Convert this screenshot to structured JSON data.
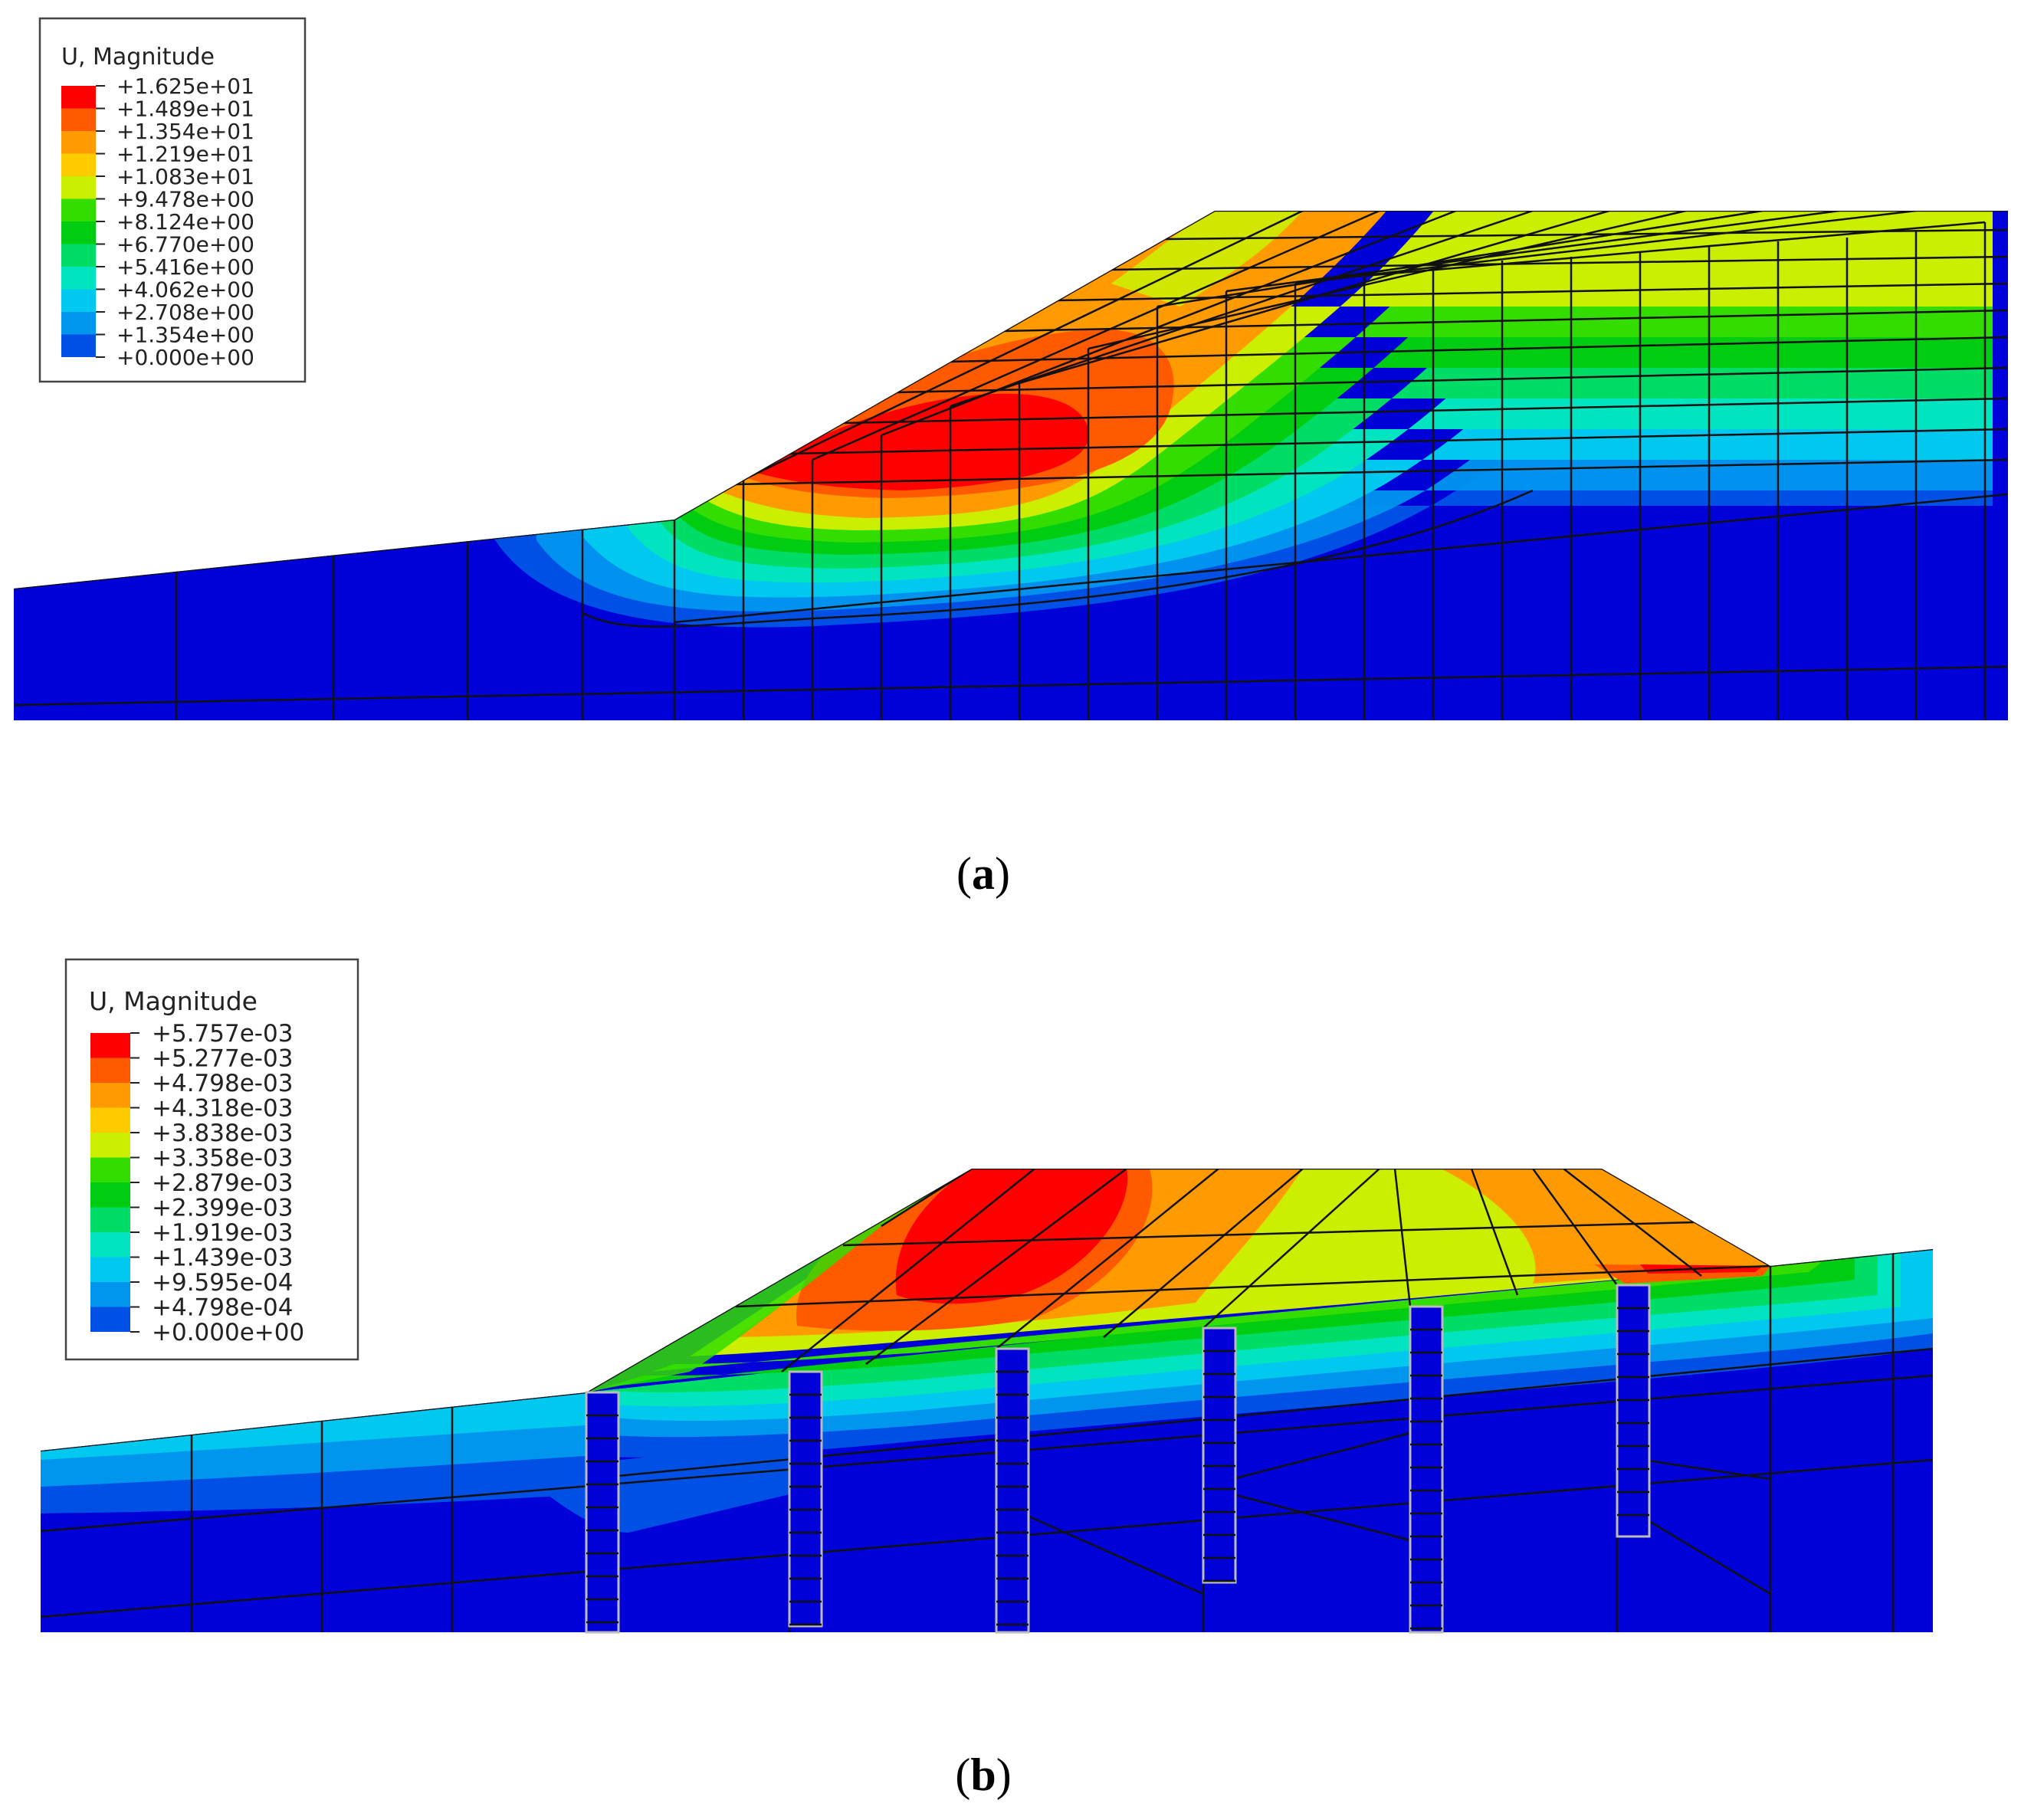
{
  "panels": [
    {
      "id": "a",
      "caption_letter": "a",
      "legend": {
        "title": "U, Magnitude",
        "levels": [
          "+1.625e+01",
          "+1.489e+01",
          "+1.354e+01",
          "+1.219e+01",
          "+1.083e+01",
          "+9.478e+00",
          "+8.124e+00",
          "+6.770e+00",
          "+5.416e+00",
          "+4.062e+00",
          "+2.708e+00",
          "+1.354e+00",
          "+0.000e+00"
        ]
      }
    },
    {
      "id": "b",
      "caption_letter": "b",
      "legend": {
        "title": "U, Magnitude",
        "levels": [
          "+5.757e-03",
          "+5.277e-03",
          "+4.798e-03",
          "+4.318e-03",
          "+3.838e-03",
          "+3.358e-03",
          "+2.879e-03",
          "+2.399e-03",
          "+1.919e-03",
          "+1.439e-03",
          "+9.595e-04",
          "+4.798e-04",
          "+0.000e+00"
        ]
      }
    }
  ],
  "colormap": [
    "#ff0000",
    "#ff5a00",
    "#ff9b00",
    "#ffcc00",
    "#ccee00",
    "#33dd00",
    "#00cc11",
    "#00dd66",
    "#00e5c0",
    "#00c8ee",
    "#0096ee",
    "#0050e6",
    "#0000d8"
  ]
}
